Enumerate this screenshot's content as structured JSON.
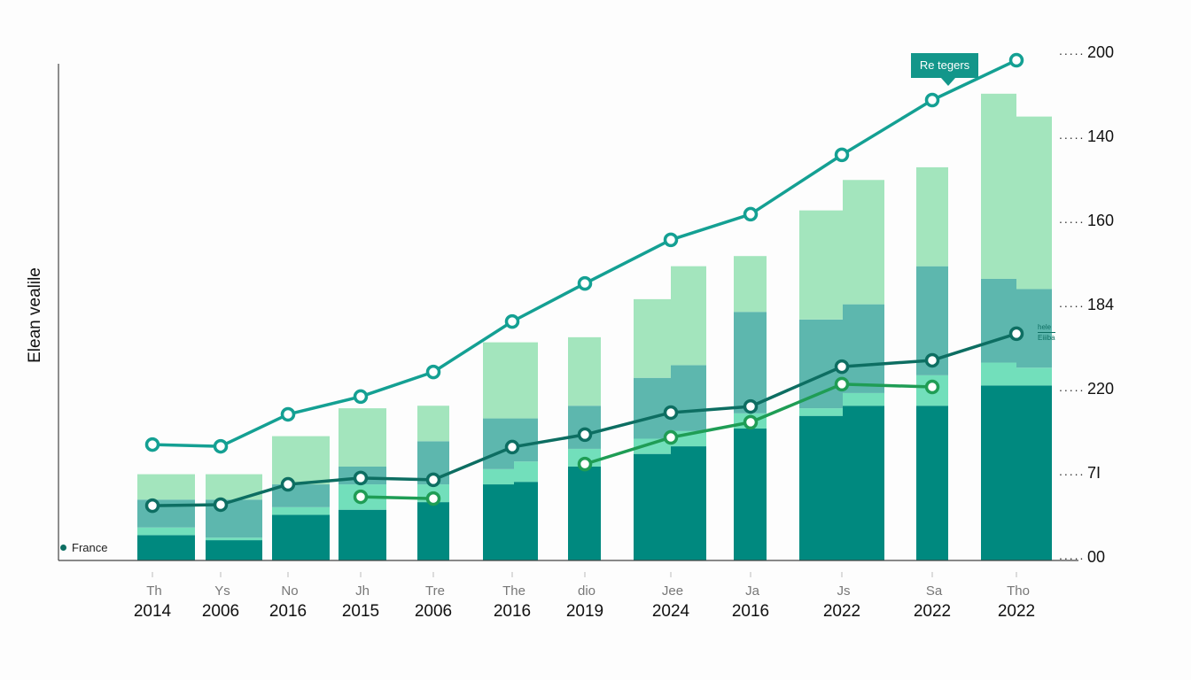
{
  "chart_data": {
    "type": "bar",
    "title": "",
    "ylabel": "Elean vealile",
    "xlabel": "",
    "ylim": [
      0,
      200
    ],
    "grid": false,
    "legend": {
      "entries": [
        "France"
      ],
      "placement": "bottom-left"
    },
    "callout": "Re tegers",
    "annotation": [
      "hele",
      "Eiiiba"
    ],
    "categories_top": [
      "Th",
      "Ys",
      "No",
      "Jh",
      "Tre",
      "The",
      "dio",
      "Jee",
      "Ja",
      "Js",
      "Sa",
      "Tho"
    ],
    "categories": [
      "2014",
      "2006",
      "2016",
      "2015",
      "2006",
      "2016",
      "2019",
      "2024",
      "2016",
      "2022",
      "2022",
      "2022"
    ],
    "y_tick_labels": [
      "200",
      "140",
      "160",
      "184",
      "220",
      "7I",
      "00"
    ],
    "stack_colors": [
      "#00897f",
      "#72dfbb",
      "#5db7ae",
      "#a3e5bd"
    ],
    "stacks": [
      [
        [
          10,
          3,
          11,
          10
        ]
      ],
      [
        [
          8,
          1,
          15,
          10
        ]
      ],
      [
        [
          18,
          3,
          9,
          19
        ]
      ],
      [
        [
          20,
          10,
          7,
          23
        ]
      ],
      [
        [
          23,
          7,
          17,
          14
        ]
      ],
      [
        [
          30,
          6,
          20,
          30
        ],
        [
          31,
          8,
          17,
          30
        ]
      ],
      [
        [
          37,
          7,
          17,
          27
        ]
      ],
      [
        [
          42,
          6,
          24,
          31
        ],
        [
          45,
          6,
          26,
          39
        ]
      ],
      [
        [
          52,
          6,
          40,
          22
        ]
      ],
      [
        [
          57,
          3,
          35,
          43
        ],
        [
          61,
          5,
          35,
          49
        ]
      ],
      [
        [
          61,
          12,
          43,
          39
        ]
      ],
      [
        [
          69,
          9,
          33,
          73
        ],
        [
          69,
          7,
          31,
          68
        ]
      ]
    ],
    "lines": [
      {
        "color": "#14a093",
        "values": [
          45.7,
          45.0,
          57.6,
          64.6,
          74.3,
          94.2,
          109.2,
          126.4,
          136.5,
          159.9,
          181.5,
          197.2
        ]
      },
      {
        "color": "#0d6e62",
        "values": [
          21.6,
          22.0,
          30.0,
          32.5,
          31.8,
          44.7,
          49.6,
          58.3,
          60.7,
          76.4,
          78.9,
          89.4
        ]
      },
      {
        "color": "#1f9d55",
        "values": [
          null,
          null,
          null,
          25.1,
          24.4,
          null,
          38.0,
          48.5,
          54.5,
          69.5,
          68.4,
          null
        ]
      }
    ]
  }
}
